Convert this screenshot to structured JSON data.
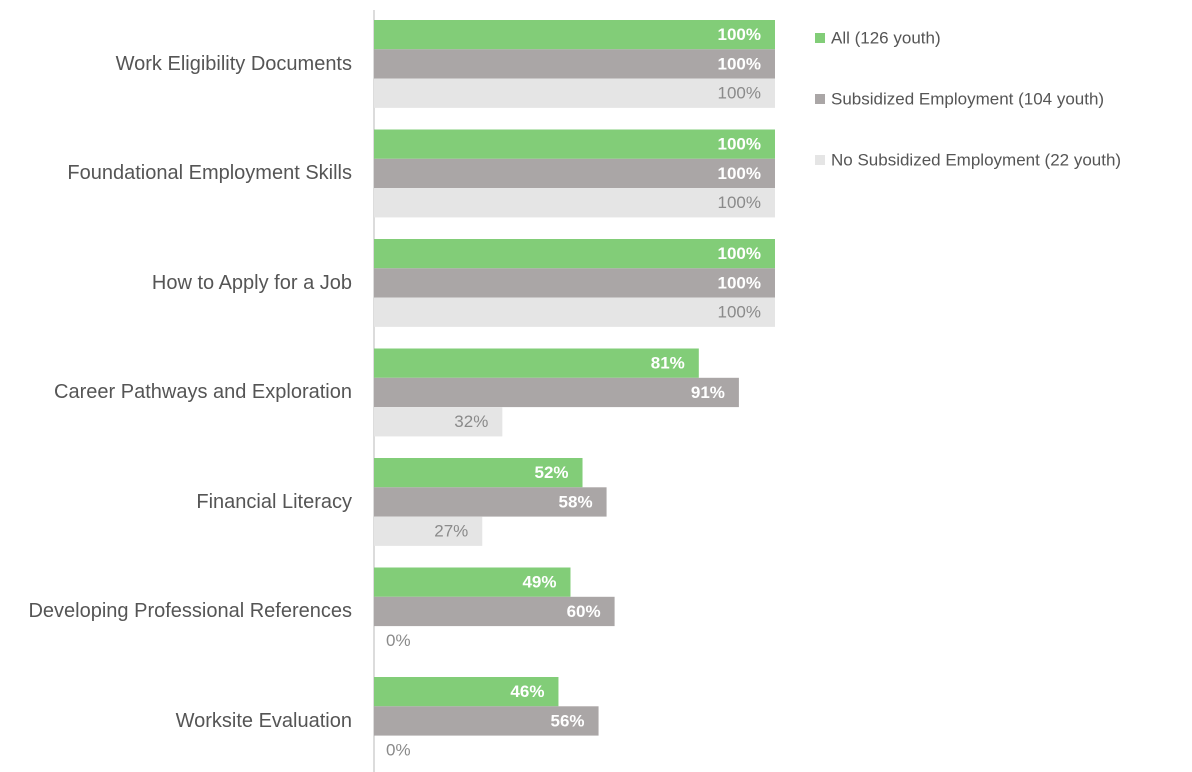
{
  "chart_data": {
    "type": "bar",
    "orientation": "horizontal",
    "categories": [
      "Work Eligibility Documents",
      "Foundational Employment Skills",
      "How to Apply for a Job",
      "Career Pathways and Exploration",
      "Financial Literacy",
      "Developing Professional References",
      "Worksite Evaluation"
    ],
    "series": [
      {
        "name": "All (126 youth)",
        "color": "#82cd78",
        "values": [
          100,
          100,
          100,
          81,
          52,
          49,
          46
        ],
        "value_labels": [
          "100%",
          "100%",
          "100%",
          "81%",
          "52%",
          "49%",
          "46%"
        ]
      },
      {
        "name": "Subsidized Employment (104 youth)",
        "color": "#aaa6a6",
        "values": [
          100,
          100,
          100,
          91,
          58,
          60,
          56
        ],
        "value_labels": [
          "100%",
          "100%",
          "100%",
          "91%",
          "58%",
          "60%",
          "56%"
        ]
      },
      {
        "name": "No Subsidized Employment (22 youth)",
        "color": "#e5e5e5",
        "values": [
          100,
          100,
          100,
          32,
          27,
          0,
          0
        ],
        "value_labels": [
          "100%",
          "100%",
          "100%",
          "32%",
          "27%",
          "0%",
          "0%"
        ]
      }
    ],
    "xlim": [
      0,
      100
    ],
    "legend": "top-right"
  }
}
